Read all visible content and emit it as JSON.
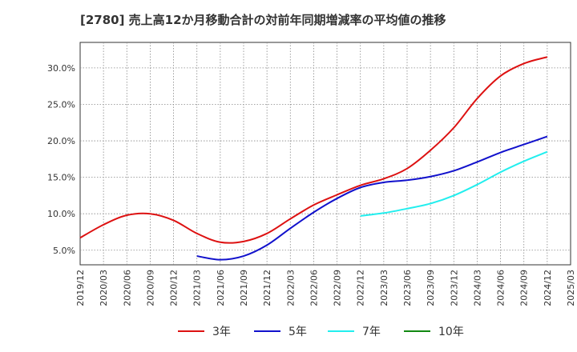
{
  "chart_data": {
    "type": "line",
    "title": "[2780]  売上高12か月移動合計の対前年同期増減率の平均値の推移",
    "xlabel": "",
    "ylabel": "",
    "x_ticks": [
      "2019/12",
      "2020/03",
      "2020/06",
      "2020/09",
      "2020/12",
      "2021/03",
      "2021/06",
      "2021/09",
      "2021/12",
      "2022/03",
      "2022/06",
      "2022/09",
      "2022/12",
      "2023/03",
      "2023/06",
      "2023/09",
      "2023/12",
      "2024/03",
      "2024/06",
      "2024/09",
      "2024/12",
      "2025/03"
    ],
    "y_ticks": [
      "5.0%",
      "10.0%",
      "15.0%",
      "20.0%",
      "25.0%",
      "30.0%"
    ],
    "ylim": [
      3.0,
      33.5
    ],
    "grid": true,
    "legend_position": "bottom",
    "series": [
      {
        "name": "3年",
        "color": "#dd1111",
        "x": [
          "2019/12",
          "2020/03",
          "2020/06",
          "2020/09",
          "2020/12",
          "2021/03",
          "2021/06",
          "2021/09",
          "2021/12",
          "2022/03",
          "2022/06",
          "2022/09",
          "2022/12",
          "2023/03",
          "2023/06",
          "2023/09",
          "2023/12",
          "2024/03",
          "2024/06",
          "2024/09",
          "2024/12"
        ],
        "values": [
          6.7,
          8.5,
          9.8,
          10.0,
          9.1,
          7.3,
          6.1,
          6.2,
          7.3,
          9.3,
          11.2,
          12.6,
          13.9,
          14.8,
          16.2,
          18.7,
          21.8,
          25.8,
          28.9,
          30.6,
          31.5
        ]
      },
      {
        "name": "5年",
        "color": "#1111cc",
        "x": [
          "2021/03",
          "2021/06",
          "2021/09",
          "2021/12",
          "2022/03",
          "2022/06",
          "2022/09",
          "2022/12",
          "2023/03",
          "2023/06",
          "2023/09",
          "2023/12",
          "2024/03",
          "2024/06",
          "2024/09",
          "2024/12"
        ],
        "values": [
          4.2,
          3.7,
          4.2,
          5.7,
          8.0,
          10.2,
          12.1,
          13.6,
          14.3,
          14.6,
          15.1,
          15.9,
          17.1,
          18.4,
          19.5,
          20.6
        ]
      },
      {
        "name": "7年",
        "color": "#22eeee",
        "x": [
          "2022/12",
          "2023/03",
          "2023/06",
          "2023/09",
          "2023/12",
          "2024/03",
          "2024/06",
          "2024/09",
          "2024/12"
        ],
        "values": [
          9.7,
          10.1,
          10.7,
          11.4,
          12.5,
          14.0,
          15.7,
          17.2,
          18.5
        ]
      },
      {
        "name": "10年",
        "color": "#118811",
        "x": [],
        "values": []
      }
    ]
  }
}
